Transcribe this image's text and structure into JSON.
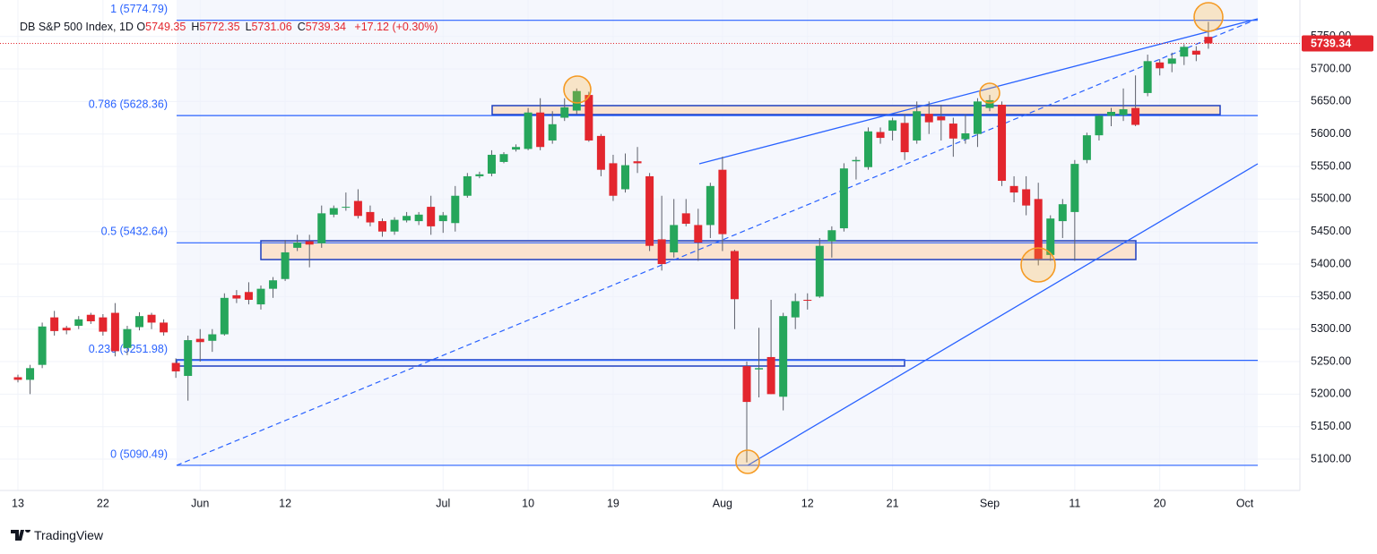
{
  "chart_data": {
    "type": "candlestick",
    "symbol": "DB S&P 500 Index, 1D",
    "legend_fields": [
      {
        "key": "O",
        "value": "5749.35"
      },
      {
        "key": "H",
        "value": "5772.35"
      },
      {
        "key": "L",
        "value": "5731.06"
      },
      {
        "key": "C",
        "value": "5739.34"
      }
    ],
    "change": "+17.12 (+0.30%)",
    "last_price": 5739.34,
    "categories": [
      "13",
      null,
      null,
      null,
      null,
      null,
      null,
      "22",
      null,
      null,
      null,
      null,
      null,
      null,
      null,
      "Jun",
      null,
      null,
      null,
      null,
      null,
      null,
      "12",
      null,
      null,
      null,
      null,
      null,
      null,
      null,
      null,
      null,
      null,
      null,
      null,
      "Jul",
      null,
      null,
      null,
      null,
      null,
      null,
      "10",
      null,
      null,
      null,
      null,
      null,
      null,
      "19",
      null,
      null,
      null,
      null,
      null,
      null,
      null,
      null,
      "Aug",
      null,
      null,
      null,
      null,
      null,
      null,
      "12",
      null,
      null,
      null,
      null,
      null,
      null,
      "21",
      null,
      null,
      null,
      null,
      null,
      null,
      null,
      "Sep",
      null,
      null,
      null,
      null,
      null,
      null,
      "11",
      null,
      null,
      null,
      null,
      null,
      null,
      "20",
      null,
      null,
      null,
      null,
      null,
      null,
      "Oct"
    ],
    "open": [
      5226,
      5222,
      5245,
      5318,
      5302,
      5305,
      5322,
      5318,
      5325,
      5271,
      5303,
      5322,
      5310,
      5248,
      5228,
      5285,
      5282,
      5292,
      5352,
      5357,
      5338,
      5362,
      5377,
      5425,
      5435,
      5432,
      5476,
      5487,
      5497,
      5480,
      5466,
      5450,
      5467,
      5466,
      5488,
      5466,
      5463,
      5505,
      5535,
      5539,
      5557,
      5576,
      5577,
      5633,
      5590,
      5625,
      5636,
      5660,
      5597,
      5555,
      5515,
      5558,
      5535,
      5438,
      5418,
      5478,
      5460,
      5460,
      5545,
      5420,
      5243,
      5238,
      5257,
      5196,
      5318,
      5345,
      5350,
      5435,
      5455,
      5558,
      5549,
      5603,
      5605,
      5617,
      5590,
      5631,
      5627,
      5616,
      5592,
      5600,
      5640,
      5645,
      5520,
      5515,
      5500,
      5414,
      5466,
      5480,
      5560,
      5598,
      5628,
      5629,
      5640,
      5663,
      5710,
      5708,
      5719,
      5728,
      5749.35,
      null,
      null,
      null
    ],
    "high": [
      5230,
      5245,
      5310,
      5328,
      5305,
      5320,
      5325,
      5323,
      5340,
      5305,
      5326,
      5325,
      5315,
      5255,
      5290,
      5300,
      5300,
      5355,
      5360,
      5372,
      5367,
      5380,
      5437,
      5445,
      5445,
      5490,
      5490,
      5510,
      5515,
      5490,
      5470,
      5472,
      5480,
      5480,
      5505,
      5480,
      5520,
      5540,
      5542,
      5575,
      5572,
      5584,
      5640,
      5655,
      5635,
      5655,
      5670,
      5665,
      5600,
      5568,
      5570,
      5580,
      5540,
      5505,
      5500,
      5500,
      5485,
      5525,
      5565,
      5422,
      5250,
      5302,
      5345,
      5325,
      5355,
      5355,
      5440,
      5458,
      5555,
      5565,
      5610,
      5610,
      5625,
      5630,
      5650,
      5650,
      5645,
      5625,
      5630,
      5655,
      5660,
      5650,
      5535,
      5535,
      5525,
      5475,
      5500,
      5560,
      5602,
      5630,
      5640,
      5670,
      5690,
      5722,
      5715,
      5725,
      5738,
      5735,
      5772.35,
      null,
      null,
      null
    ],
    "low": [
      5218,
      5200,
      5240,
      5290,
      5292,
      5300,
      5308,
      5290,
      5258,
      5260,
      5298,
      5300,
      5290,
      5225,
      5190,
      5250,
      5265,
      5290,
      5340,
      5338,
      5330,
      5348,
      5374,
      5420,
      5395,
      5425,
      5472,
      5482,
      5470,
      5458,
      5442,
      5445,
      5464,
      5460,
      5445,
      5448,
      5450,
      5502,
      5532,
      5535,
      5555,
      5573,
      5575,
      5575,
      5585,
      5620,
      5630,
      5588,
      5535,
      5497,
      5510,
      5540,
      5420,
      5390,
      5410,
      5458,
      5405,
      5440,
      5420,
      5300,
      5095,
      5195,
      5200,
      5175,
      5300,
      5330,
      5348,
      5410,
      5450,
      5530,
      5545,
      5585,
      5590,
      5560,
      5585,
      5600,
      5590,
      5565,
      5585,
      5580,
      5635,
      5520,
      5495,
      5475,
      5398,
      5405,
      5440,
      5405,
      5555,
      5590,
      5612,
      5620,
      5612,
      5658,
      5690,
      5695,
      5706,
      5712,
      5731.06,
      null,
      null,
      null
    ],
    "close": [
      5222,
      5240,
      5304,
      5297,
      5298,
      5315,
      5312,
      5296,
      5266,
      5300,
      5320,
      5310,
      5295,
      5235,
      5283,
      5280,
      5292,
      5348,
      5347,
      5345,
      5362,
      5375,
      5418,
      5433,
      5430,
      5478,
      5486,
      5488,
      5474,
      5464,
      5450,
      5468,
      5474,
      5476,
      5458,
      5475,
      5505,
      5535,
      5538,
      5568,
      5569,
      5580,
      5633,
      5580,
      5615,
      5641,
      5666,
      5590,
      5545,
      5505,
      5552,
      5555,
      5428,
      5400,
      5460,
      5462,
      5433,
      5520,
      5446,
      5346,
      5188,
      5240,
      5200,
      5320,
      5343,
      5344,
      5428,
      5452,
      5547,
      5560,
      5604,
      5594,
      5621,
      5572,
      5635,
      5618,
      5621,
      5593,
      5601,
      5650,
      5652,
      5528,
      5510,
      5490,
      5408,
      5470,
      5492,
      5554,
      5598,
      5628,
      5634,
      5638,
      5614,
      5712,
      5701,
      5716,
      5734,
      5722,
      5739.34,
      null,
      null,
      null
    ],
    "up_color": "#26a65b",
    "down_color": "#e3262e",
    "wick_color": "#5d606b",
    "fib_color": "#2962ff",
    "fib_levels": [
      {
        "value": 5090.49,
        "label": "0 (5090.49)"
      },
      {
        "value": 5251.98,
        "label": "0.236 (5251.98)"
      },
      {
        "value": 5432.64,
        "label": "0.5 (5432.64)"
      },
      {
        "value": 5628.36,
        "label": "0.786 (5628.36)"
      },
      {
        "value": 5774.79,
        "label": "1 (5774.79)"
      }
    ],
    "ylim": [
      5051.9,
      5806.0
    ],
    "yticks": [
      {
        "value": 5100,
        "label": "5100.00"
      },
      {
        "value": 5150,
        "label": "5150.00"
      },
      {
        "value": 5200,
        "label": "5200.00"
      },
      {
        "value": 5250,
        "label": "5250.00"
      },
      {
        "value": 5300,
        "label": "5300.00"
      },
      {
        "value": 5350,
        "label": "5350.00"
      },
      {
        "value": 5400,
        "label": "5400.00"
      },
      {
        "value": 5450,
        "label": "5450.00"
      },
      {
        "value": 5500,
        "label": "5500.00"
      },
      {
        "value": 5550,
        "label": "5550.00"
      },
      {
        "value": 5600,
        "label": "5600.00"
      },
      {
        "value": 5650,
        "label": "5650.00"
      },
      {
        "value": 5700,
        "label": "5700.00"
      },
      {
        "value": 5750,
        "label": "5750.00"
      }
    ],
    "grid": true,
    "branding": "TradingView"
  }
}
